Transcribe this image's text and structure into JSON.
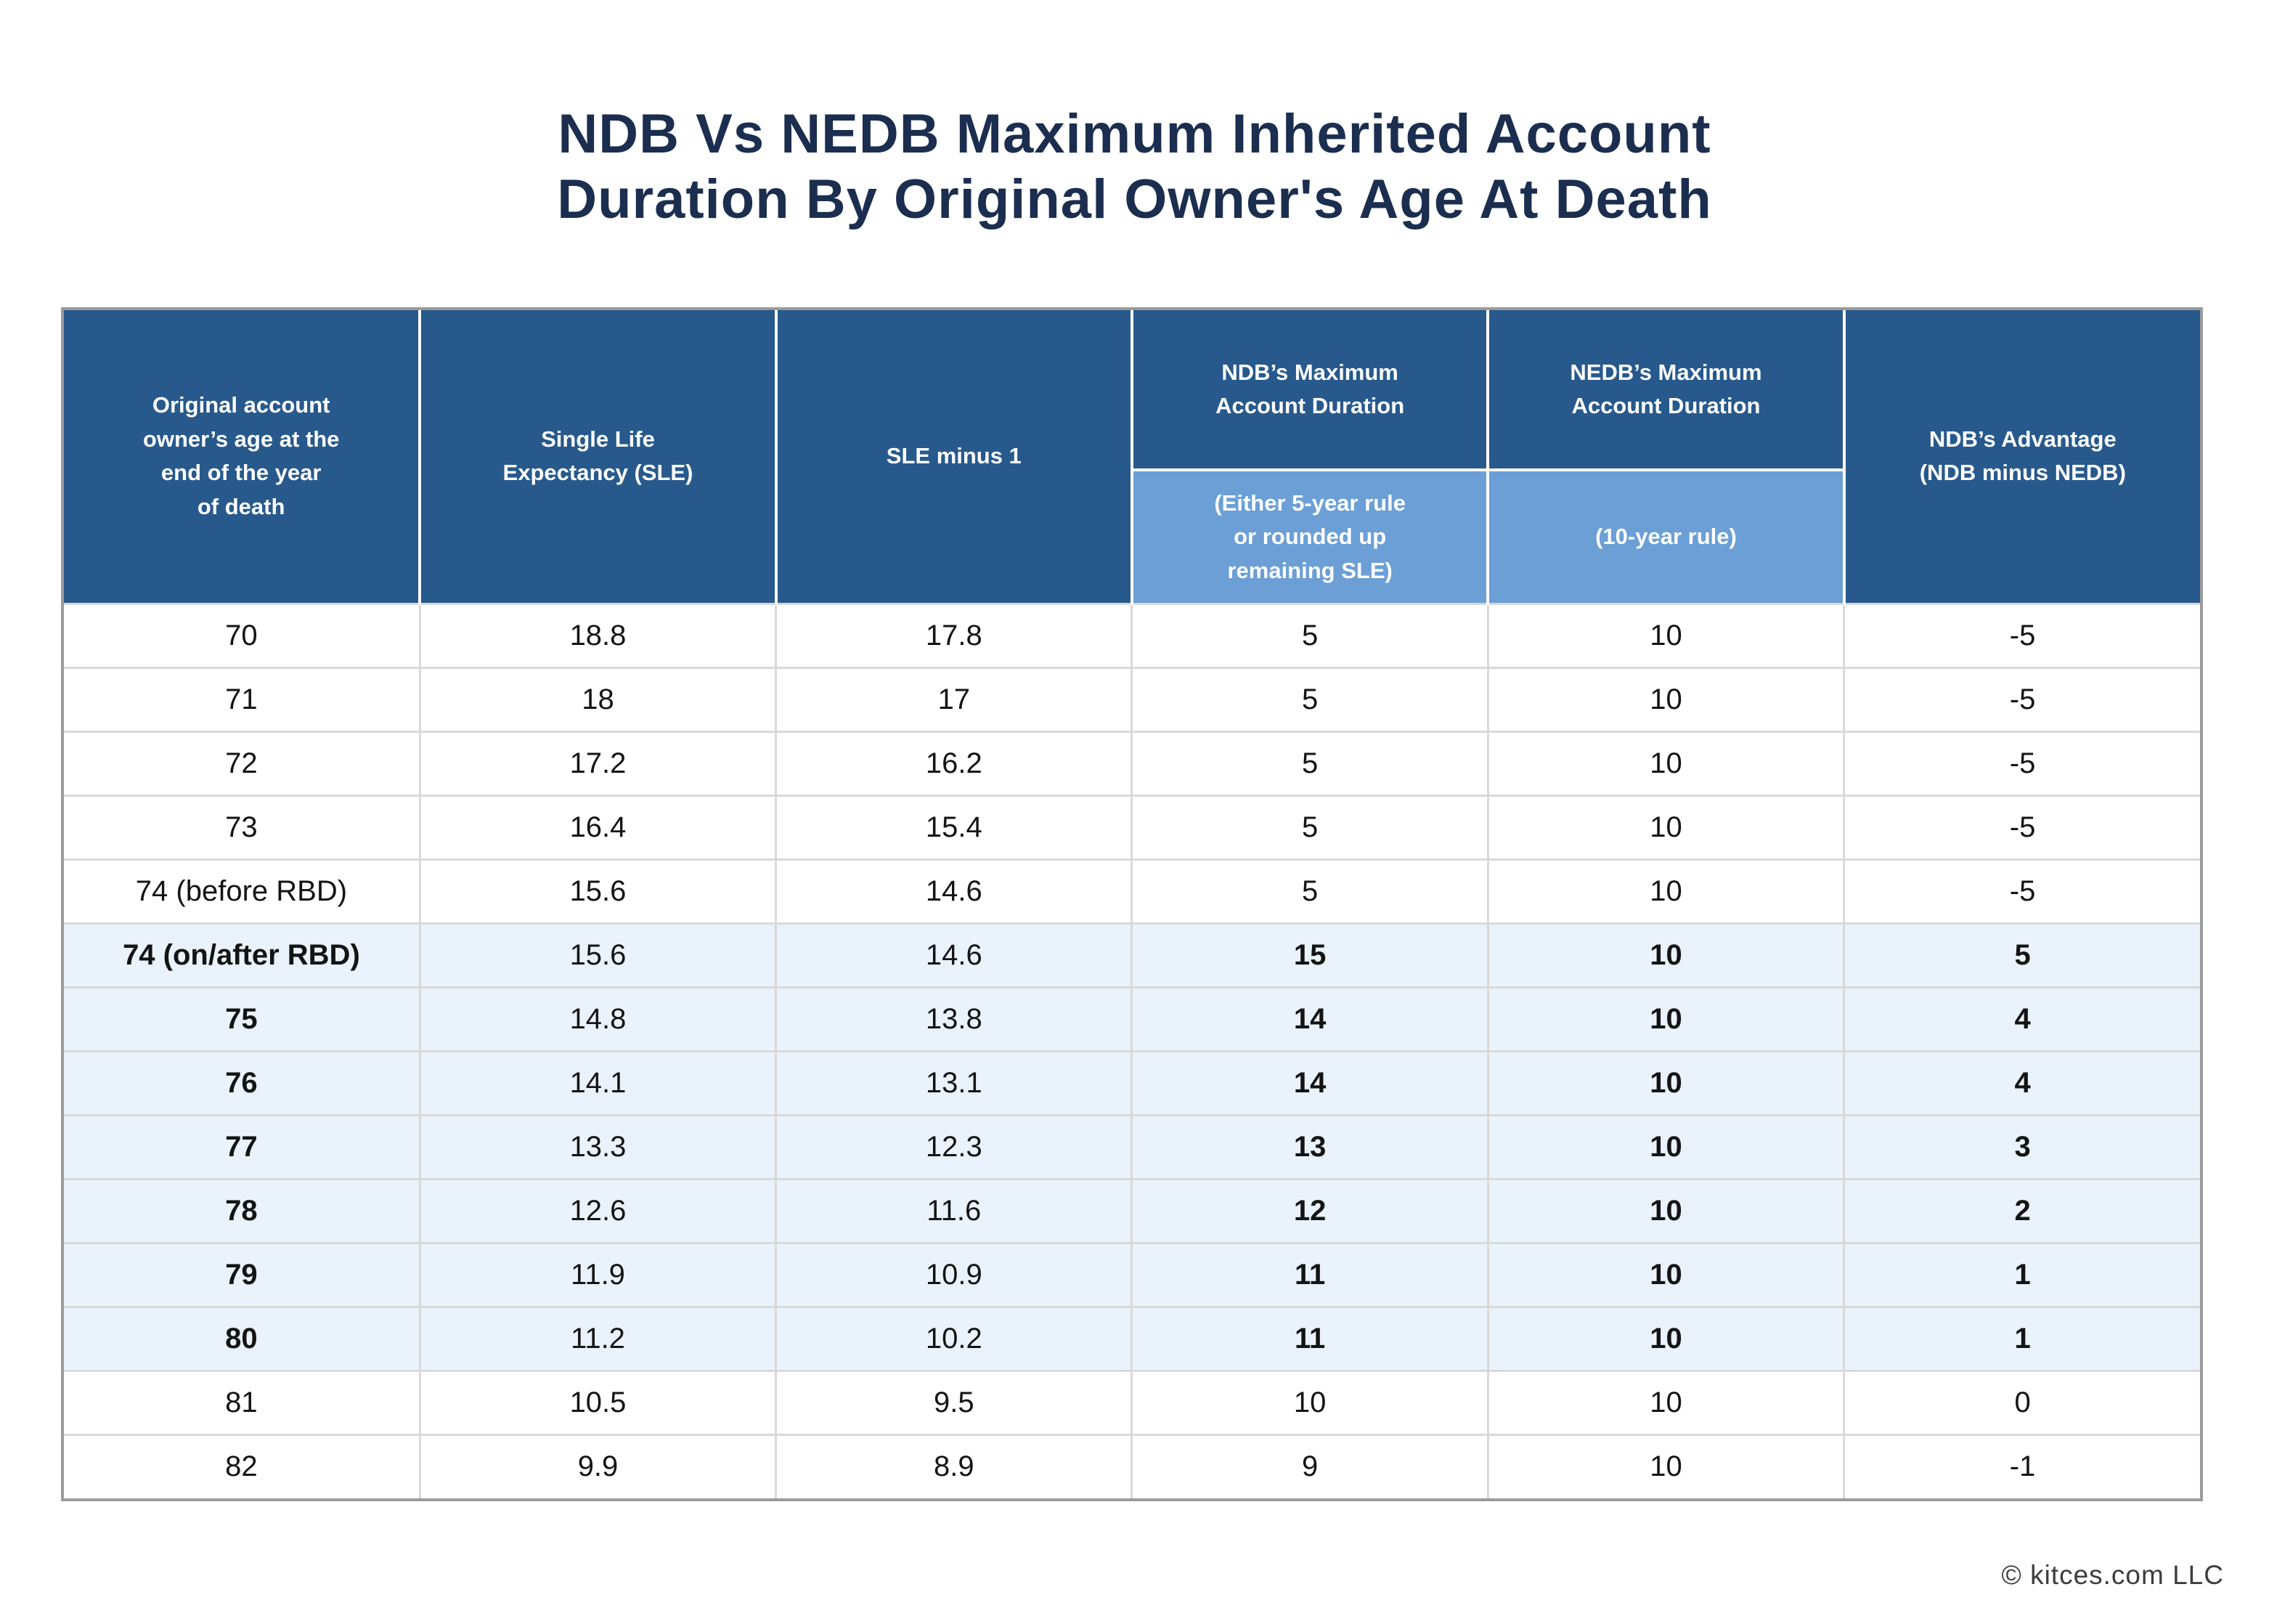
{
  "title": {
    "line1": "NDB Vs NEDB Maximum Inherited Account",
    "line2": "Duration By Original Owner's Age At Death"
  },
  "table": {
    "headers": {
      "age": "Original account\nowner’s age at the\nend of the year\nof death",
      "sle": "Single Life\nExpectancy (SLE)",
      "sle_minus_1": "SLE minus 1",
      "ndb_max": "NDB’s Maximum\nAccount Duration",
      "nedb_max": "NEDB’s Maximum\nAccount Duration",
      "advantage": "NDB’s Advantage\n(NDB minus NEDB)"
    },
    "subheaders": {
      "ndb_rule": "(Either 5-year rule\nor rounded up\nremaining SLE)",
      "nedb_rule": "(10-year rule)"
    },
    "rows": [
      {
        "cells": [
          "70",
          "18.8",
          "17.8",
          "5",
          "10",
          "-5"
        ],
        "highlight": false
      },
      {
        "cells": [
          "71",
          "18",
          "17",
          "5",
          "10",
          "-5"
        ],
        "highlight": false
      },
      {
        "cells": [
          "72",
          "17.2",
          "16.2",
          "5",
          "10",
          "-5"
        ],
        "highlight": false
      },
      {
        "cells": [
          "73",
          "16.4",
          "15.4",
          "5",
          "10",
          "-5"
        ],
        "highlight": false
      },
      {
        "cells": [
          "74 (before RBD)",
          "15.6",
          "14.6",
          "5",
          "10",
          "-5"
        ],
        "highlight": false
      },
      {
        "cells": [
          "74 (on/after RBD)",
          "15.6",
          "14.6",
          "15",
          "10",
          "5"
        ],
        "highlight": true
      },
      {
        "cells": [
          "75",
          "14.8",
          "13.8",
          "14",
          "10",
          "4"
        ],
        "highlight": true
      },
      {
        "cells": [
          "76",
          "14.1",
          "13.1",
          "14",
          "10",
          "4"
        ],
        "highlight": true
      },
      {
        "cells": [
          "77",
          "13.3",
          "12.3",
          "13",
          "10",
          "3"
        ],
        "highlight": true
      },
      {
        "cells": [
          "78",
          "12.6",
          "11.6",
          "12",
          "10",
          "2"
        ],
        "highlight": true
      },
      {
        "cells": [
          "79",
          "11.9",
          "10.9",
          "11",
          "10",
          "1"
        ],
        "highlight": true
      },
      {
        "cells": [
          "80",
          "11.2",
          "10.2",
          "11",
          "10",
          "1"
        ],
        "highlight": true
      },
      {
        "cells": [
          "81",
          "10.5",
          "9.5",
          "10",
          "10",
          "0"
        ],
        "highlight": false
      },
      {
        "cells": [
          "82",
          "9.9",
          "8.9",
          "9",
          "10",
          "-1"
        ],
        "highlight": false
      }
    ]
  },
  "footer": {
    "copyright": "© kitces.com LLC"
  },
  "colors": {
    "header_blue": "#27598c",
    "subheader_blue": "#6b9fd6",
    "highlight_row": "#eaf3fb",
    "title_navy": "#1b2e4f",
    "frame_gray": "#9b9b9b",
    "divider_gray": "#d9d9d9"
  },
  "chart_data": {
    "type": "table",
    "title": "NDB Vs NEDB Maximum Inherited Account Duration By Original Owner's Age At Death",
    "columns": [
      "Original account owner's age at the end of the year of death",
      "Single Life Expectancy (SLE)",
      "SLE minus 1",
      "NDB's Maximum Account Duration (Either 5-year rule or rounded up remaining SLE)",
      "NEDB's Maximum Account Duration (10-year rule)",
      "NDB's Advantage (NDB minus NEDB)"
    ],
    "rows": [
      [
        "70",
        18.8,
        17.8,
        5,
        10,
        -5
      ],
      [
        "71",
        18,
        17,
        5,
        10,
        -5
      ],
      [
        "72",
        17.2,
        16.2,
        5,
        10,
        -5
      ],
      [
        "73",
        16.4,
        15.4,
        5,
        10,
        -5
      ],
      [
        "74 (before RBD)",
        15.6,
        14.6,
        5,
        10,
        -5
      ],
      [
        "74 (on/after RBD)",
        15.6,
        14.6,
        15,
        10,
        5
      ],
      [
        "75",
        14.8,
        13.8,
        14,
        10,
        4
      ],
      [
        "76",
        14.1,
        13.1,
        14,
        10,
        4
      ],
      [
        "77",
        13.3,
        12.3,
        13,
        10,
        3
      ],
      [
        "78",
        12.6,
        11.6,
        12,
        10,
        2
      ],
      [
        "79",
        11.9,
        10.9,
        11,
        10,
        1
      ],
      [
        "80",
        11.2,
        10.2,
        11,
        10,
        1
      ],
      [
        "81",
        10.5,
        9.5,
        10,
        10,
        0
      ],
      [
        "82",
        9.9,
        8.9,
        9,
        10,
        -1
      ]
    ],
    "highlighted_rows": [
      "74 (on/after RBD)",
      "75",
      "76",
      "77",
      "78",
      "79",
      "80"
    ]
  }
}
